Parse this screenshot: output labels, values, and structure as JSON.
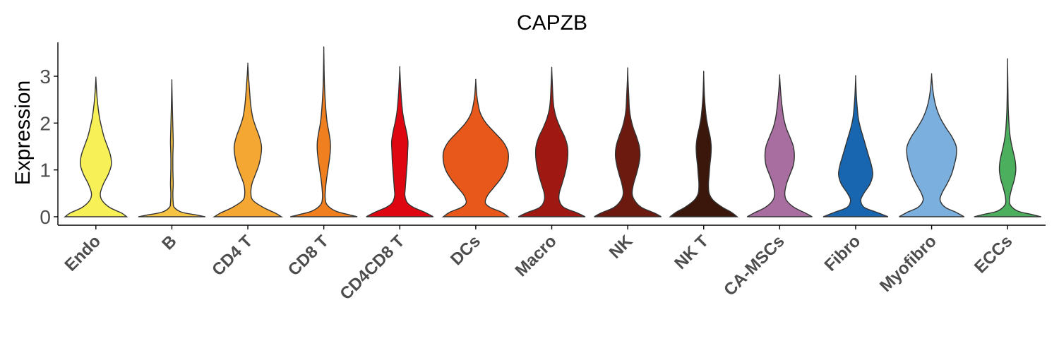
{
  "chart_data": {
    "type": "violin",
    "title": "CAPZB",
    "xlabel": "",
    "ylabel": "Expression",
    "ylim": [
      -0.18,
      3.7
    ],
    "yticks": [
      0,
      1,
      2,
      3
    ],
    "grid": false,
    "legend": "none",
    "categories": [
      "Endo",
      "B",
      "CD4 T",
      "CD8 T",
      "CD4CD8 T",
      "DCs",
      "Macro",
      "NK",
      "NK T",
      "CA-MSCs",
      "Fibro",
      "Myofibro",
      "ECCs"
    ],
    "series": [
      {
        "category": "Endo",
        "color": "#F7F157",
        "max": 2.95,
        "profile": [
          [
            0,
            0.9
          ],
          [
            0.08,
            0.75
          ],
          [
            0.2,
            0.4
          ],
          [
            0.35,
            0.18
          ],
          [
            0.5,
            0.13
          ],
          [
            0.7,
            0.22
          ],
          [
            0.9,
            0.36
          ],
          [
            1.1,
            0.45
          ],
          [
            1.3,
            0.43
          ],
          [
            1.5,
            0.34
          ],
          [
            1.7,
            0.24
          ],
          [
            1.9,
            0.17
          ],
          [
            2.1,
            0.11
          ],
          [
            2.3,
            0.07
          ],
          [
            2.5,
            0.04
          ],
          [
            2.7,
            0.02
          ],
          [
            2.95,
            0
          ]
        ]
      },
      {
        "category": "B",
        "color": "#F6C342",
        "max": 2.88,
        "profile": [
          [
            0,
            0.98
          ],
          [
            0.04,
            0.7
          ],
          [
            0.1,
            0.28
          ],
          [
            0.2,
            0.07
          ],
          [
            0.3,
            0.04
          ],
          [
            0.5,
            0.03
          ],
          [
            0.7,
            0.04
          ],
          [
            1.0,
            0.03
          ],
          [
            1.3,
            0.03
          ],
          [
            1.6,
            0.04
          ],
          [
            1.9,
            0.03
          ],
          [
            2.2,
            0.02
          ],
          [
            2.5,
            0.01
          ],
          [
            2.88,
            0
          ]
        ]
      },
      {
        "category": "CD4 T",
        "color": "#F5A733",
        "max": 3.25,
        "profile": [
          [
            0,
            0.98
          ],
          [
            0.08,
            0.8
          ],
          [
            0.2,
            0.45
          ],
          [
            0.35,
            0.15
          ],
          [
            0.5,
            0.09
          ],
          [
            0.7,
            0.12
          ],
          [
            0.9,
            0.22
          ],
          [
            1.1,
            0.32
          ],
          [
            1.3,
            0.38
          ],
          [
            1.5,
            0.4
          ],
          [
            1.7,
            0.34
          ],
          [
            1.9,
            0.24
          ],
          [
            2.1,
            0.15
          ],
          [
            2.3,
            0.1
          ],
          [
            2.5,
            0.07
          ],
          [
            2.7,
            0.05
          ],
          [
            3.0,
            0.02
          ],
          [
            3.25,
            0
          ]
        ]
      },
      {
        "category": "CD8 T",
        "color": "#F07F20",
        "max": 3.57,
        "profile": [
          [
            0,
            0.98
          ],
          [
            0.05,
            0.7
          ],
          [
            0.12,
            0.35
          ],
          [
            0.25,
            0.1
          ],
          [
            0.4,
            0.04
          ],
          [
            0.6,
            0.05
          ],
          [
            0.8,
            0.08
          ],
          [
            1.0,
            0.12
          ],
          [
            1.2,
            0.16
          ],
          [
            1.4,
            0.19
          ],
          [
            1.6,
            0.19
          ],
          [
            1.8,
            0.15
          ],
          [
            2.0,
            0.1
          ],
          [
            2.2,
            0.07
          ],
          [
            2.5,
            0.04
          ],
          [
            2.8,
            0.02
          ],
          [
            3.1,
            0.01
          ],
          [
            3.57,
            0
          ]
        ]
      },
      {
        "category": "CD4CD8 T",
        "color": "#DE0610",
        "max": 3.15,
        "profile": [
          [
            0,
            0.98
          ],
          [
            0.1,
            0.72
          ],
          [
            0.2,
            0.4
          ],
          [
            0.3,
            0.22
          ],
          [
            0.45,
            0.15
          ],
          [
            0.6,
            0.16
          ],
          [
            0.8,
            0.18
          ],
          [
            1.0,
            0.2
          ],
          [
            1.2,
            0.22
          ],
          [
            1.4,
            0.23
          ],
          [
            1.6,
            0.24
          ],
          [
            1.8,
            0.2
          ],
          [
            2.0,
            0.14
          ],
          [
            2.2,
            0.09
          ],
          [
            2.4,
            0.06
          ],
          [
            2.7,
            0.03
          ],
          [
            3.15,
            0
          ]
        ]
      },
      {
        "category": "DCs",
        "color": "#E8581A",
        "max": 2.9,
        "profile": [
          [
            0,
            0.95
          ],
          [
            0.1,
            0.75
          ],
          [
            0.2,
            0.42
          ],
          [
            0.3,
            0.28
          ],
          [
            0.45,
            0.34
          ],
          [
            0.6,
            0.5
          ],
          [
            0.8,
            0.72
          ],
          [
            1.0,
            0.88
          ],
          [
            1.2,
            0.95
          ],
          [
            1.4,
            0.94
          ],
          [
            1.6,
            0.8
          ],
          [
            1.8,
            0.55
          ],
          [
            2.0,
            0.3
          ],
          [
            2.2,
            0.14
          ],
          [
            2.4,
            0.07
          ],
          [
            2.6,
            0.03
          ],
          [
            2.9,
            0
          ]
        ]
      },
      {
        "category": "Macro",
        "color": "#A01812",
        "max": 3.15,
        "profile": [
          [
            0,
            0.98
          ],
          [
            0.08,
            0.75
          ],
          [
            0.2,
            0.35
          ],
          [
            0.35,
            0.22
          ],
          [
            0.5,
            0.22
          ],
          [
            0.7,
            0.3
          ],
          [
            0.9,
            0.38
          ],
          [
            1.1,
            0.44
          ],
          [
            1.3,
            0.47
          ],
          [
            1.5,
            0.46
          ],
          [
            1.7,
            0.38
          ],
          [
            1.9,
            0.25
          ],
          [
            2.1,
            0.14
          ],
          [
            2.3,
            0.07
          ],
          [
            2.5,
            0.04
          ],
          [
            2.8,
            0.02
          ],
          [
            3.15,
            0
          ]
        ]
      },
      {
        "category": "NK",
        "color": "#6C1A10",
        "max": 3.15,
        "profile": [
          [
            0,
            0.98
          ],
          [
            0.08,
            0.78
          ],
          [
            0.2,
            0.4
          ],
          [
            0.35,
            0.2
          ],
          [
            0.5,
            0.13
          ],
          [
            0.7,
            0.17
          ],
          [
            0.9,
            0.25
          ],
          [
            1.1,
            0.32
          ],
          [
            1.3,
            0.36
          ],
          [
            1.5,
            0.34
          ],
          [
            1.7,
            0.26
          ],
          [
            1.9,
            0.16
          ],
          [
            2.1,
            0.09
          ],
          [
            2.3,
            0.05
          ],
          [
            2.6,
            0.03
          ],
          [
            2.9,
            0.01
          ],
          [
            3.15,
            0
          ]
        ]
      },
      {
        "category": "NK T",
        "color": "#3B160B",
        "max": 3.05,
        "profile": [
          [
            0,
            0.98
          ],
          [
            0.1,
            0.8
          ],
          [
            0.2,
            0.55
          ],
          [
            0.35,
            0.28
          ],
          [
            0.5,
            0.16
          ],
          [
            0.7,
            0.14
          ],
          [
            0.9,
            0.16
          ],
          [
            1.1,
            0.18
          ],
          [
            1.3,
            0.21
          ],
          [
            1.5,
            0.22
          ],
          [
            1.7,
            0.19
          ],
          [
            1.9,
            0.13
          ],
          [
            2.1,
            0.08
          ],
          [
            2.3,
            0.05
          ],
          [
            2.6,
            0.02
          ],
          [
            3.05,
            0
          ]
        ]
      },
      {
        "category": "CA-MSCs",
        "color": "#A86EA0",
        "max": 3.0,
        "profile": [
          [
            0,
            0.95
          ],
          [
            0.08,
            0.75
          ],
          [
            0.2,
            0.42
          ],
          [
            0.35,
            0.2
          ],
          [
            0.5,
            0.15
          ],
          [
            0.7,
            0.2
          ],
          [
            0.9,
            0.3
          ],
          [
            1.1,
            0.4
          ],
          [
            1.3,
            0.43
          ],
          [
            1.5,
            0.4
          ],
          [
            1.7,
            0.3
          ],
          [
            1.9,
            0.19
          ],
          [
            2.1,
            0.12
          ],
          [
            2.3,
            0.08
          ],
          [
            2.5,
            0.05
          ],
          [
            2.75,
            0.02
          ],
          [
            3.0,
            0
          ]
        ]
      },
      {
        "category": "Fibro",
        "color": "#1966B0",
        "max": 2.97,
        "profile": [
          [
            0,
            0.95
          ],
          [
            0.1,
            0.6
          ],
          [
            0.2,
            0.25
          ],
          [
            0.35,
            0.15
          ],
          [
            0.5,
            0.24
          ],
          [
            0.7,
            0.42
          ],
          [
            0.9,
            0.5
          ],
          [
            1.1,
            0.46
          ],
          [
            1.3,
            0.38
          ],
          [
            1.5,
            0.3
          ],
          [
            1.7,
            0.22
          ],
          [
            1.9,
            0.14
          ],
          [
            2.1,
            0.08
          ],
          [
            2.3,
            0.05
          ],
          [
            2.6,
            0.02
          ],
          [
            2.97,
            0
          ]
        ]
      },
      {
        "category": "Myofibro",
        "color": "#7AAFDE",
        "max": 3.02,
        "profile": [
          [
            0,
            0.95
          ],
          [
            0.1,
            0.7
          ],
          [
            0.2,
            0.4
          ],
          [
            0.35,
            0.25
          ],
          [
            0.5,
            0.3
          ],
          [
            0.7,
            0.45
          ],
          [
            0.9,
            0.58
          ],
          [
            1.1,
            0.66
          ],
          [
            1.3,
            0.72
          ],
          [
            1.5,
            0.72
          ],
          [
            1.7,
            0.6
          ],
          [
            1.9,
            0.42
          ],
          [
            2.1,
            0.26
          ],
          [
            2.3,
            0.15
          ],
          [
            2.5,
            0.08
          ],
          [
            2.75,
            0.03
          ],
          [
            3.02,
            0
          ]
        ]
      },
      {
        "category": "ECCs",
        "color": "#4BAF5E",
        "max": 3.3,
        "profile": [
          [
            0,
            0.98
          ],
          [
            0.05,
            0.7
          ],
          [
            0.12,
            0.3
          ],
          [
            0.25,
            0.08
          ],
          [
            0.4,
            0.06
          ],
          [
            0.6,
            0.12
          ],
          [
            0.8,
            0.2
          ],
          [
            1.0,
            0.24
          ],
          [
            1.2,
            0.22
          ],
          [
            1.4,
            0.16
          ],
          [
            1.6,
            0.1
          ],
          [
            1.8,
            0.06
          ],
          [
            2.0,
            0.04
          ],
          [
            2.3,
            0.02
          ],
          [
            2.7,
            0.01
          ],
          [
            3.3,
            0
          ]
        ]
      }
    ]
  }
}
